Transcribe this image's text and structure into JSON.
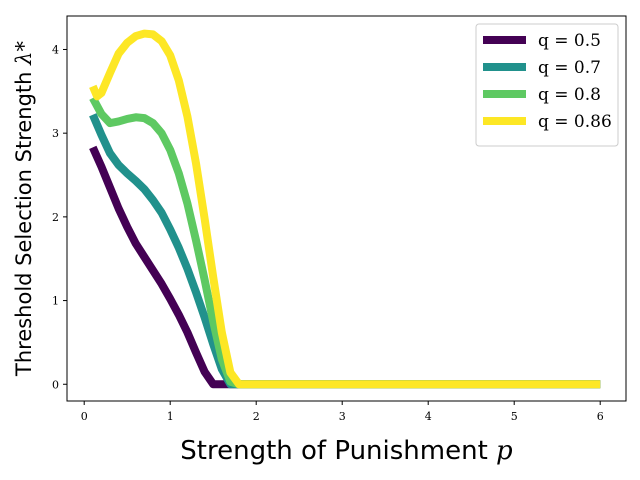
{
  "chart_data": {
    "type": "line",
    "xlabel": "Strength of Punishment",
    "xlabel_var": "p",
    "ylabel": "Threshold Selection Strength",
    "ylabel_var": "λ*",
    "xlim": [
      -0.2,
      6.3
    ],
    "ylim": [
      -0.2,
      4.4
    ],
    "x_ticks": [
      0,
      1,
      2,
      3,
      4,
      5,
      6
    ],
    "y_ticks": [
      0,
      1,
      2,
      3,
      4
    ],
    "grid": false,
    "legend_position": "top-right",
    "series": [
      {
        "name": "q = 0.5",
        "color": "#440154",
        "x": [
          0.1,
          0.2,
          0.3,
          0.4,
          0.5,
          0.6,
          0.7,
          0.8,
          0.9,
          1.0,
          1.1,
          1.2,
          1.3,
          1.4,
          1.5,
          1.6,
          6.0
        ],
        "y": [
          2.83,
          2.6,
          2.35,
          2.1,
          1.88,
          1.68,
          1.52,
          1.36,
          1.2,
          1.02,
          0.83,
          0.62,
          0.38,
          0.15,
          0.0,
          0.0,
          0.0
        ]
      },
      {
        "name": "q = 0.7",
        "color": "#21918c",
        "x": [
          0.1,
          0.2,
          0.3,
          0.4,
          0.5,
          0.6,
          0.7,
          0.8,
          0.9,
          1.0,
          1.1,
          1.2,
          1.3,
          1.4,
          1.5,
          1.6,
          1.7,
          1.75,
          6.0
        ],
        "y": [
          3.22,
          2.98,
          2.76,
          2.62,
          2.52,
          2.43,
          2.33,
          2.2,
          2.05,
          1.85,
          1.63,
          1.38,
          1.1,
          0.8,
          0.48,
          0.18,
          0.0,
          0.0,
          0.0
        ]
      },
      {
        "name": "q = 0.8",
        "color": "#5ec962",
        "x": [
          0.1,
          0.2,
          0.3,
          0.4,
          0.5,
          0.6,
          0.7,
          0.8,
          0.9,
          1.0,
          1.1,
          1.2,
          1.3,
          1.4,
          1.5,
          1.6,
          1.7,
          1.8,
          6.0
        ],
        "y": [
          3.42,
          3.23,
          3.12,
          3.14,
          3.17,
          3.19,
          3.18,
          3.12,
          3.0,
          2.8,
          2.52,
          2.16,
          1.72,
          1.25,
          0.75,
          0.3,
          0.03,
          0.0,
          0.0
        ]
      },
      {
        "name": "q = 0.86",
        "color": "#fde725",
        "x": [
          0.1,
          0.15,
          0.2,
          0.3,
          0.4,
          0.5,
          0.6,
          0.7,
          0.8,
          0.9,
          1.0,
          1.1,
          1.2,
          1.3,
          1.4,
          1.5,
          1.6,
          1.7,
          1.8,
          1.85,
          6.0
        ],
        "y": [
          3.56,
          3.44,
          3.48,
          3.72,
          3.95,
          4.08,
          4.16,
          4.19,
          4.18,
          4.1,
          3.93,
          3.63,
          3.2,
          2.64,
          1.98,
          1.28,
          0.62,
          0.14,
          0.0,
          0.0,
          0.0
        ]
      }
    ]
  }
}
